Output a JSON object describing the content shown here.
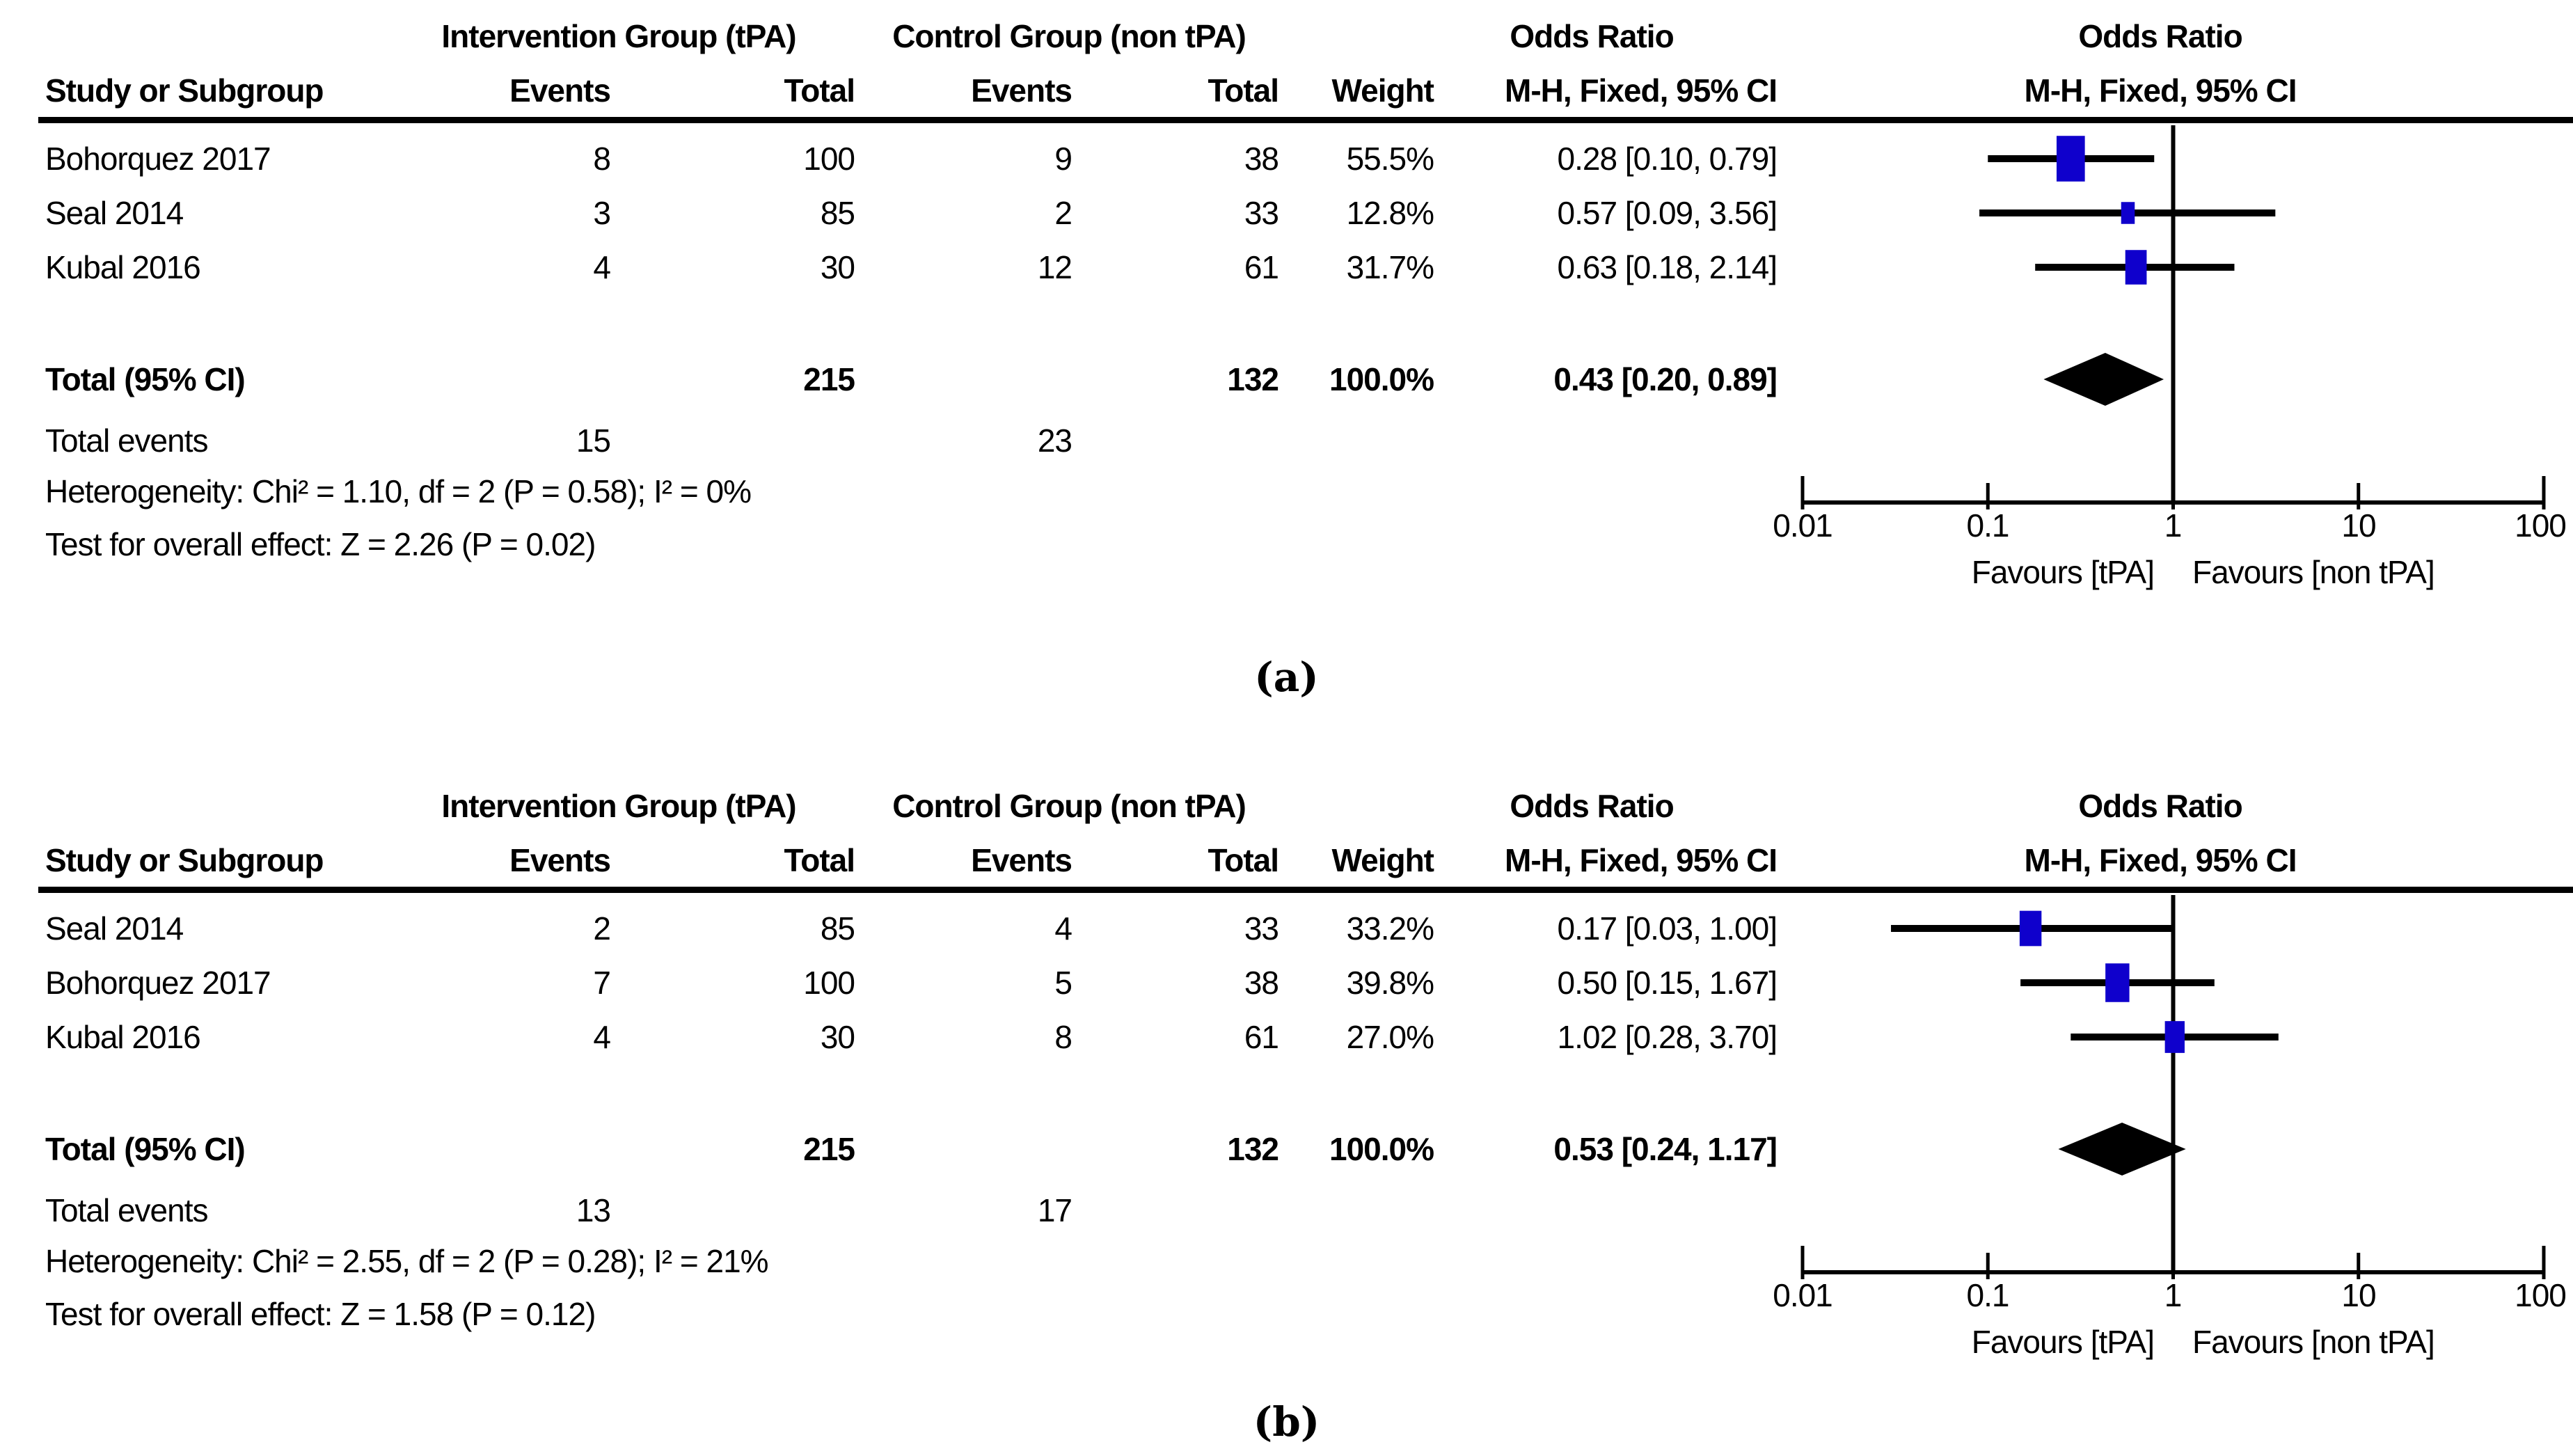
{
  "figure": {
    "caption_a": "(a)",
    "caption_b": "(b)",
    "marker_color": "#0f00cc",
    "line_color": "#000000"
  },
  "panels": [
    {
      "id": "a",
      "header": {
        "group1": "Intervention Group (tPA)",
        "group2": "Control Group (non tPA)",
        "or_text_title": "Odds Ratio",
        "or_plot_title": "Odds Ratio",
        "study": "Study or Subgroup",
        "events1": "Events",
        "total1": "Total",
        "events2": "Events",
        "total2": "Total",
        "weight": "Weight",
        "mh_text": "M-H, Fixed, 95% CI",
        "mh_plot": "M-H, Fixed, 95% CI"
      },
      "rows": [
        {
          "study": "Bohorquez 2017",
          "events1": "8",
          "total1": "100",
          "events2": "9",
          "total2": "38",
          "weight": "55.5%",
          "or_ci": "0.28 [0.10, 0.79]"
        },
        {
          "study": "Seal 2014",
          "events1": "3",
          "total1": "85",
          "events2": "2",
          "total2": "33",
          "weight": "12.8%",
          "or_ci": "0.57 [0.09, 3.56]"
        },
        {
          "study": "Kubal 2016",
          "events1": "4",
          "total1": "30",
          "events2": "12",
          "total2": "61",
          "weight": "31.7%",
          "or_ci": "0.63 [0.18, 2.14]"
        }
      ],
      "total": {
        "label": "Total (95% CI)",
        "total1": "215",
        "total2": "132",
        "weight": "100.0%",
        "or_ci": "0.43 [0.20, 0.89]"
      },
      "total_events": {
        "label": "Total events",
        "events1": "15",
        "events2": "23"
      },
      "heterogeneity": "Heterogeneity: Chi² = 1.10, df = 2 (P = 0.58); I² = 0%",
      "overall_effect": "Test for overall effect: Z = 2.26 (P = 0.02)",
      "axis": {
        "ticks": [
          "0.01",
          "0.1",
          "1",
          "10",
          "100"
        ],
        "favours_left": "Favours [tPA]",
        "favours_right": "Favours [non tPA]"
      }
    },
    {
      "id": "b",
      "header": {
        "group1": "Intervention Group (tPA)",
        "group2": "Control Group (non tPA)",
        "or_text_title": "Odds Ratio",
        "or_plot_title": "Odds Ratio",
        "study": "Study or Subgroup",
        "events1": "Events",
        "total1": "Total",
        "events2": "Events",
        "total2": "Total",
        "weight": "Weight",
        "mh_text": "M-H, Fixed, 95% CI",
        "mh_plot": "M-H, Fixed, 95% CI"
      },
      "rows": [
        {
          "study": "Seal 2014",
          "events1": "2",
          "total1": "85",
          "events2": "4",
          "total2": "33",
          "weight": "33.2%",
          "or_ci": "0.17 [0.03, 1.00]"
        },
        {
          "study": "Bohorquez 2017",
          "events1": "7",
          "total1": "100",
          "events2": "5",
          "total2": "38",
          "weight": "39.8%",
          "or_ci": "0.50 [0.15, 1.67]"
        },
        {
          "study": "Kubal 2016",
          "events1": "4",
          "total1": "30",
          "events2": "8",
          "total2": "61",
          "weight": "27.0%",
          "or_ci": "1.02 [0.28, 3.70]"
        }
      ],
      "total": {
        "label": "Total (95% CI)",
        "total1": "215",
        "total2": "132",
        "weight": "100.0%",
        "or_ci": "0.53 [0.24, 1.17]"
      },
      "total_events": {
        "label": "Total events",
        "events1": "13",
        "events2": "17"
      },
      "heterogeneity": "Heterogeneity: Chi² = 2.55, df = 2 (P = 0.28); I² = 21%",
      "overall_effect": "Test for overall effect: Z = 1.58 (P = 0.12)",
      "axis": {
        "ticks": [
          "0.01",
          "0.1",
          "1",
          "10",
          "100"
        ],
        "favours_left": "Favours [tPA]",
        "favours_right": "Favours [non tPA]"
      }
    }
  ],
  "chart_data": [
    {
      "type": "forest",
      "panel": "a",
      "effect_measure": "Odds Ratio, M-H, Fixed, 95% CI",
      "scale": "log10",
      "xlim": [
        0.01,
        100
      ],
      "x_ticks": [
        0.01,
        0.1,
        1,
        10,
        100
      ],
      "null_line": 1,
      "studies": [
        {
          "name": "Bohorquez 2017",
          "or": 0.28,
          "ci_low": 0.1,
          "ci_high": 0.79,
          "weight_pct": 55.5
        },
        {
          "name": "Seal 2014",
          "or": 0.57,
          "ci_low": 0.09,
          "ci_high": 3.56,
          "weight_pct": 12.8
        },
        {
          "name": "Kubal 2016",
          "or": 0.63,
          "ci_low": 0.18,
          "ci_high": 2.14,
          "weight_pct": 31.7
        }
      ],
      "total": {
        "or": 0.43,
        "ci_low": 0.2,
        "ci_high": 0.89
      }
    },
    {
      "type": "forest",
      "panel": "b",
      "effect_measure": "Odds Ratio, M-H, Fixed, 95% CI",
      "scale": "log10",
      "xlim": [
        0.01,
        100
      ],
      "x_ticks": [
        0.01,
        0.1,
        1,
        10,
        100
      ],
      "null_line": 1,
      "studies": [
        {
          "name": "Seal 2014",
          "or": 0.17,
          "ci_low": 0.03,
          "ci_high": 1.0,
          "weight_pct": 33.2
        },
        {
          "name": "Bohorquez 2017",
          "or": 0.5,
          "ci_low": 0.15,
          "ci_high": 1.67,
          "weight_pct": 39.8
        },
        {
          "name": "Kubal 2016",
          "or": 1.02,
          "ci_low": 0.28,
          "ci_high": 3.7,
          "weight_pct": 27.0
        }
      ],
      "total": {
        "or": 0.53,
        "ci_low": 0.24,
        "ci_high": 1.17
      }
    }
  ]
}
